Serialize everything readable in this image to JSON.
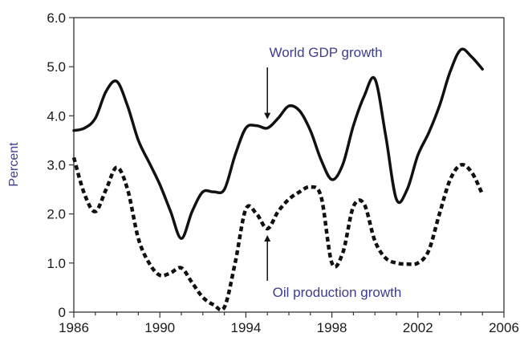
{
  "chart_data": {
    "type": "line",
    "ylabel": "Percent",
    "xlim": [
      1986,
      2006
    ],
    "ylim": [
      0,
      6
    ],
    "x_ticks": [
      1986,
      1990,
      1994,
      1998,
      2002,
      2006
    ],
    "y_ticks": [
      0,
      1,
      2,
      3,
      4,
      5,
      6
    ],
    "x_tick_labels": [
      "1986",
      "1990",
      "1994",
      "1998",
      "2002",
      "2006"
    ],
    "y_tick_labels": [
      "0",
      "1.0",
      "2.0",
      "3.0",
      "4.0",
      "5.0",
      "6.0"
    ],
    "grid": false,
    "series": [
      {
        "name": "World GDP growth",
        "style": "solid",
        "color": "#111111",
        "x": [
          1986,
          1986.5,
          1987,
          1987.5,
          1988,
          1988.5,
          1989,
          1989.5,
          1990,
          1990.5,
          1991,
          1991.5,
          1992,
          1992.5,
          1993,
          1993.5,
          1994,
          1994.5,
          1995,
          1995.5,
          1996,
          1996.5,
          1997,
          1997.5,
          1998,
          1998.5,
          1999,
          1999.5,
          2000,
          2000.5,
          2001,
          2001.5,
          2002,
          2002.5,
          2003,
          2003.5,
          2004,
          2004.5,
          2005
        ],
        "values": [
          3.7,
          3.75,
          3.95,
          4.5,
          4.7,
          4.2,
          3.5,
          3.05,
          2.6,
          2.05,
          1.5,
          2.05,
          2.45,
          2.45,
          2.5,
          3.2,
          3.75,
          3.8,
          3.75,
          3.95,
          4.2,
          4.1,
          3.7,
          3.1,
          2.7,
          3.0,
          3.8,
          4.4,
          4.75,
          3.6,
          2.3,
          2.5,
          3.2,
          3.65,
          4.2,
          4.9,
          5.35,
          5.2,
          4.95
        ]
      },
      {
        "name": "Oil production growth",
        "style": "dashed",
        "color": "#111111",
        "x": [
          1986,
          1986.5,
          1987,
          1987.5,
          1988,
          1988.5,
          1989,
          1989.5,
          1990,
          1990.5,
          1991,
          1991.5,
          1992,
          1992.5,
          1993,
          1993.5,
          1994,
          1994.5,
          1995,
          1995.5,
          1996,
          1996.5,
          1997,
          1997.5,
          1998,
          1998.5,
          1999,
          1999.5,
          2000,
          2000.5,
          2001,
          2001.5,
          2002,
          2002.5,
          2003,
          2003.5,
          2004,
          2004.5,
          2005
        ],
        "values": [
          3.15,
          2.4,
          2.05,
          2.5,
          2.95,
          2.5,
          1.5,
          1.0,
          0.75,
          0.8,
          0.9,
          0.6,
          0.3,
          0.15,
          0.1,
          1.0,
          2.1,
          2.0,
          1.7,
          2.05,
          2.3,
          2.45,
          2.55,
          2.35,
          1.0,
          1.2,
          2.15,
          2.2,
          1.45,
          1.1,
          1.0,
          0.98,
          1.0,
          1.25,
          2.0,
          2.7,
          3.0,
          2.85,
          2.4
        ]
      }
    ],
    "annotations": [
      {
        "text": "World GDP growth",
        "series": "World GDP growth",
        "points_to": [
          1995,
          3.8
        ]
      },
      {
        "text": "Oil production growth",
        "series": "Oil production growth",
        "points_to": [
          1995,
          1.7
        ]
      }
    ]
  }
}
